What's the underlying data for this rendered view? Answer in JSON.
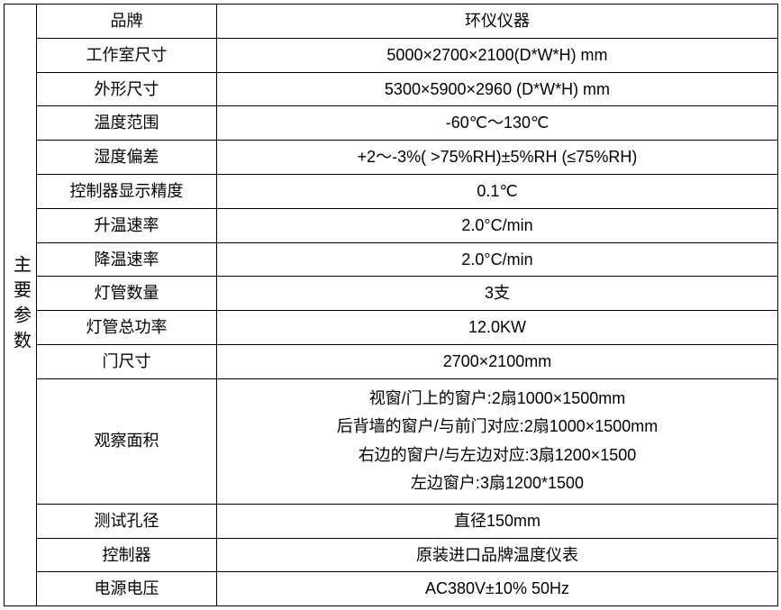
{
  "table": {
    "headerLabel": "主要参数",
    "columns": {
      "labelWidth": 200,
      "valueWidth": 623,
      "headerWidth": 36
    },
    "rows": [
      {
        "label": "品牌",
        "value": "环仪仪器"
      },
      {
        "label": "工作室尺寸",
        "value": "5000×2700×2100(D*W*H) mm"
      },
      {
        "label": "外形尺寸",
        "value": "5300×5900×2960 (D*W*H) mm"
      },
      {
        "label": "温度范围",
        "value": "-60℃～130℃"
      },
      {
        "label": "湿度偏差",
        "value": "+2～-3%( >75%RH)±5%RH (≤75%RH)"
      },
      {
        "label": "控制器显示精度",
        "value": "0.1℃"
      },
      {
        "label": "升温速率",
        "value": "2.0°C/min"
      },
      {
        "label": "降温速率",
        "value": "2.0°C/min"
      },
      {
        "label": "灯管数量",
        "value": "3支"
      },
      {
        "label": "灯管总功率",
        "value": "12.0KW"
      },
      {
        "label": "门尺寸",
        "value": "2700×2100mm"
      },
      {
        "label": "观察面积",
        "multiline": [
          "视窗/门上的窗户:2扇1000×1500mm",
          "后背墙的窗户/与前门对应:2扇1000×1500mm",
          "右边的窗户/与左边对应:3扇1200×1500",
          "左边窗户:3扇1200*1500"
        ]
      },
      {
        "label": "测试孔径",
        "value": "直径150mm"
      },
      {
        "label": "控制器",
        "value": "原装进口品牌温度仪表"
      },
      {
        "label": "电源电压",
        "value": "AC380V±10% 50Hz"
      }
    ],
    "styling": {
      "borderColor": "#000000",
      "backgroundColor": "#ffffff",
      "textColor": "#000000",
      "fontSize": 18,
      "headerFontSize": 20,
      "fontFamily": "Microsoft YaHei"
    }
  }
}
